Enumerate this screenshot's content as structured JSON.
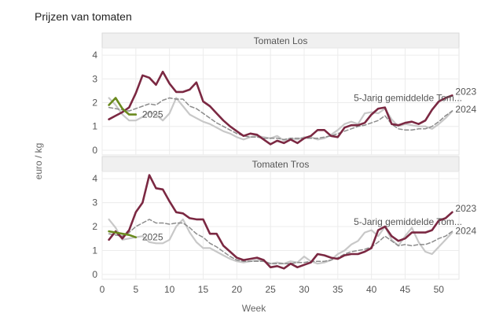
{
  "chart_data": {
    "type": "line",
    "title": "Prijzen van tomaten",
    "xlabel": "Week",
    "ylabel": "euro / kg",
    "xlim": [
      0,
      53
    ],
    "ylim": [
      -0.2,
      4.3
    ],
    "x_ticks": [
      0,
      5,
      10,
      15,
      20,
      25,
      30,
      35,
      40,
      45,
      50
    ],
    "y_ticks": [
      0,
      1,
      2,
      3,
      4
    ],
    "grid": true,
    "colors": {
      "2023": "#7b2842",
      "2024": "#c8c8c8",
      "2025": "#6a8a1e",
      "avg": "#8c8c8c"
    },
    "panels": [
      {
        "title": "Tomaten Los",
        "series": [
          {
            "name": "2023",
            "x": [
              1,
              2,
              3,
              4,
              5,
              6,
              7,
              8,
              9,
              10,
              11,
              12,
              13,
              14,
              15,
              16,
              17,
              18,
              19,
              20,
              21,
              22,
              23,
              24,
              25,
              26,
              27,
              28,
              29,
              30,
              31,
              32,
              33,
              34,
              35,
              36,
              37,
              38,
              39,
              40,
              41,
              42,
              43,
              44,
              45,
              46,
              47,
              48,
              49,
              50,
              51,
              52
            ],
            "values": [
              1.3,
              1.45,
              1.6,
              1.8,
              2.4,
              3.15,
              3.05,
              2.75,
              3.3,
              2.8,
              2.45,
              2.45,
              2.55,
              2.85,
              2.05,
              1.85,
              1.55,
              1.25,
              1.0,
              0.8,
              0.6,
              0.7,
              0.65,
              0.45,
              0.25,
              0.4,
              0.3,
              0.45,
              0.3,
              0.5,
              0.6,
              0.85,
              0.85,
              0.6,
              0.55,
              0.95,
              1.05,
              1.05,
              1.15,
              1.5,
              1.75,
              1.8,
              1.1,
              1.05,
              1.15,
              1.2,
              1.1,
              1.25,
              1.7,
              2.05,
              2.2,
              2.3
            ]
          },
          {
            "name": "2024",
            "x": [
              1,
              2,
              3,
              4,
              5,
              6,
              7,
              8,
              9,
              10,
              11,
              12,
              13,
              14,
              15,
              16,
              17,
              18,
              19,
              20,
              21,
              22,
              23,
              24,
              25,
              26,
              27,
              28,
              29,
              30,
              31,
              32,
              33,
              34,
              35,
              36,
              37,
              38,
              39,
              40,
              41,
              42,
              43,
              44,
              45,
              46,
              47,
              48,
              49,
              50,
              51,
              52
            ],
            "values": [
              2.2,
              1.9,
              1.5,
              1.25,
              1.25,
              1.4,
              1.6,
              1.5,
              1.25,
              1.55,
              2.2,
              1.85,
              1.5,
              1.35,
              1.2,
              1.1,
              0.95,
              0.8,
              0.7,
              0.55,
              0.45,
              0.55,
              0.6,
              0.55,
              0.5,
              0.6,
              0.4,
              0.5,
              0.45,
              0.55,
              0.55,
              0.45,
              0.5,
              0.65,
              0.85,
              1.1,
              1.2,
              1.1,
              1.55,
              1.6,
              1.55,
              1.75,
              1.3,
              1.0,
              1.1,
              1.05,
              1.0,
              1.0,
              0.9,
              1.1,
              1.35,
              1.65
            ]
          },
          {
            "name": "2025",
            "x": [
              1,
              2,
              3,
              4,
              5
            ],
            "values": [
              1.9,
              2.2,
              1.75,
              1.5,
              1.5
            ]
          },
          {
            "name": "5-Jarig gemiddelde Tom...",
            "x": [
              1,
              2,
              3,
              4,
              5,
              6,
              7,
              8,
              9,
              10,
              11,
              12,
              13,
              14,
              15,
              16,
              17,
              18,
              19,
              20,
              21,
              22,
              23,
              24,
              25,
              26,
              27,
              28,
              29,
              30,
              31,
              32,
              33,
              34,
              35,
              36,
              37,
              38,
              39,
              40,
              41,
              42,
              43,
              44,
              45,
              46,
              47,
              48,
              49,
              50,
              51,
              52
            ],
            "values": [
              1.8,
              1.75,
              1.7,
              1.65,
              1.75,
              1.85,
              1.95,
              1.9,
              2.1,
              2.2,
              2.15,
              2.15,
              1.85,
              1.75,
              1.55,
              1.35,
              1.15,
              1.0,
              0.85,
              0.7,
              0.6,
              0.55,
              0.55,
              0.5,
              0.5,
              0.5,
              0.45,
              0.5,
              0.5,
              0.5,
              0.5,
              0.5,
              0.55,
              0.6,
              0.7,
              0.8,
              0.9,
              1.0,
              1.05,
              1.15,
              1.25,
              1.45,
              1.1,
              0.9,
              0.85,
              0.85,
              0.9,
              0.9,
              1.0,
              1.2,
              1.45,
              1.65
            ]
          }
        ]
      },
      {
        "title": "Tomaten Tros",
        "series": [
          {
            "name": "2023",
            "x": [
              1,
              2,
              3,
              4,
              5,
              6,
              7,
              8,
              9,
              10,
              11,
              12,
              13,
              14,
              15,
              16,
              17,
              18,
              19,
              20,
              21,
              22,
              23,
              24,
              25,
              26,
              27,
              28,
              29,
              30,
              31,
              32,
              33,
              34,
              35,
              36,
              37,
              38,
              39,
              40,
              41,
              42,
              43,
              44,
              45,
              46,
              47,
              48,
              49,
              50,
              51,
              52
            ],
            "values": [
              1.45,
              1.8,
              1.5,
              1.85,
              2.6,
              3.0,
              4.15,
              3.6,
              3.55,
              3.05,
              2.6,
              2.55,
              2.35,
              2.3,
              2.3,
              1.7,
              1.7,
              1.2,
              0.95,
              0.7,
              0.6,
              0.65,
              0.7,
              0.6,
              0.3,
              0.35,
              0.25,
              0.45,
              0.3,
              0.4,
              0.5,
              0.85,
              0.8,
              0.7,
              0.65,
              0.8,
              0.85,
              0.85,
              0.95,
              1.1,
              1.85,
              2.0,
              1.6,
              1.4,
              1.5,
              1.75,
              1.75,
              1.75,
              1.85,
              2.25,
              2.35,
              2.6
            ]
          },
          {
            "name": "2024",
            "x": [
              1,
              2,
              3,
              4,
              5,
              6,
              7,
              8,
              9,
              10,
              11,
              12,
              13,
              14,
              15,
              16,
              17,
              18,
              19,
              20,
              21,
              22,
              23,
              24,
              25,
              26,
              27,
              28,
              29,
              30,
              31,
              32,
              33,
              34,
              35,
              36,
              37,
              38,
              39,
              40,
              41,
              42,
              43,
              44,
              45,
              46,
              47,
              48,
              49,
              50,
              51,
              52
            ],
            "values": [
              2.3,
              1.95,
              1.45,
              1.5,
              1.55,
              1.6,
              1.35,
              1.3,
              1.3,
              1.45,
              2.0,
              2.3,
              1.75,
              1.35,
              1.1,
              1.1,
              0.95,
              0.8,
              0.65,
              0.55,
              0.5,
              0.55,
              0.6,
              0.55,
              0.45,
              0.5,
              0.45,
              0.55,
              0.5,
              0.75,
              0.55,
              0.45,
              0.5,
              0.6,
              0.85,
              1.0,
              1.25,
              1.4,
              1.75,
              1.85,
              1.6,
              2.0,
              1.45,
              1.2,
              1.6,
              1.95,
              1.35,
              0.95,
              0.85,
              1.15,
              1.45,
              1.75
            ]
          },
          {
            "name": "2025",
            "x": [
              1,
              2,
              3,
              4,
              5
            ],
            "values": [
              1.8,
              1.75,
              1.7,
              1.65,
              1.55
            ]
          },
          {
            "name": "5-Jarig gemiddelde Tom...",
            "x": [
              1,
              2,
              3,
              4,
              5,
              6,
              7,
              8,
              9,
              10,
              11,
              12,
              13,
              14,
              15,
              16,
              17,
              18,
              19,
              20,
              21,
              22,
              23,
              24,
              25,
              26,
              27,
              28,
              29,
              30,
              31,
              32,
              33,
              34,
              35,
              36,
              37,
              38,
              39,
              40,
              41,
              42,
              43,
              44,
              45,
              46,
              47,
              48,
              49,
              50,
              51,
              52
            ],
            "values": [
              1.7,
              1.65,
              1.6,
              1.75,
              2.0,
              2.15,
              2.3,
              2.15,
              2.15,
              2.1,
              2.15,
              2.15,
              1.95,
              1.7,
              1.55,
              1.3,
              1.15,
              0.95,
              0.75,
              0.6,
              0.55,
              0.55,
              0.55,
              0.55,
              0.45,
              0.45,
              0.45,
              0.45,
              0.5,
              0.5,
              0.55,
              0.55,
              0.55,
              0.6,
              0.7,
              0.85,
              0.95,
              1.0,
              1.05,
              1.15,
              1.35,
              1.6,
              1.4,
              1.2,
              1.25,
              1.2,
              1.25,
              1.25,
              1.35,
              1.5,
              1.6,
              1.8
            ]
          }
        ]
      }
    ],
    "end_labels": [
      {
        "panel": 0,
        "text": "2023",
        "x": 52,
        "y": 2.3
      },
      {
        "panel": 0,
        "text": "2024",
        "x": 52,
        "y": 1.65
      },
      {
        "panel": 0,
        "text": "2025",
        "x": 5,
        "y": 1.5
      },
      {
        "panel": 0,
        "text": "5-Jarig gemiddelde Tom...",
        "x": 39,
        "y": 2.2
      },
      {
        "panel": 1,
        "text": "2023",
        "x": 52,
        "y": 2.6
      },
      {
        "panel": 1,
        "text": "2024",
        "x": 52,
        "y": 1.75
      },
      {
        "panel": 1,
        "text": "2025",
        "x": 5,
        "y": 1.55
      },
      {
        "panel": 1,
        "text": "5-Jarig gemiddelde Tom...",
        "x": 39,
        "y": 2.2
      }
    ]
  }
}
